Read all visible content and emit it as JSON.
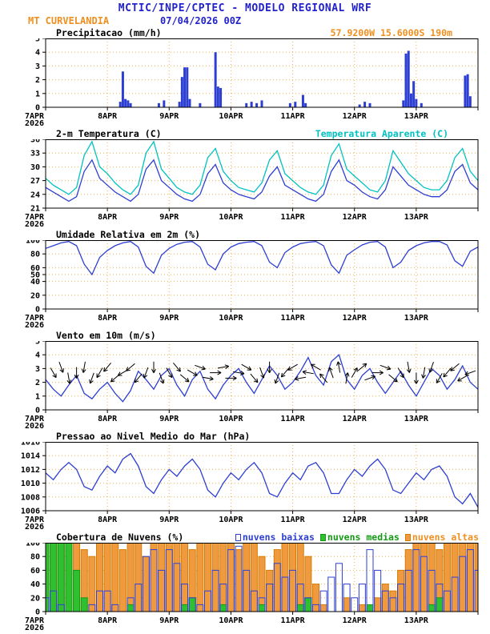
{
  "header": {
    "line1": "MCTIC/INPE/CPTEC - MODELO REGIONAL WRF",
    "station": "MT CURVELANDIA",
    "run": "07/04/2026 00Z",
    "location": "57.9200W 15.6000S 190m"
  },
  "colors": {
    "blue": "#2d3fd3",
    "cyan": "#00c2c2",
    "orange": "#f09a40",
    "orange_text": "#ef8f1f",
    "orange_stroke": "#d67b00",
    "green": "#2fbf2f",
    "green_stroke": "#149914",
    "grid": "#f2b24e",
    "black": "#000000"
  },
  "x_axis": {
    "hours_total": 168,
    "day_labels": [
      "7APR",
      "8APR",
      "9APR",
      "10APR",
      "11APR",
      "12APR",
      "13APR"
    ],
    "year_label": "2026"
  },
  "chart_data": [
    {
      "id": "precip",
      "type": "bar",
      "title": "Precipitacao (mm/h)",
      "ylabel": "mm/h",
      "ylim": [
        0,
        5
      ],
      "yticks": [
        0,
        1,
        2,
        3,
        4,
        5
      ],
      "points": [
        [
          29,
          0.4
        ],
        [
          30,
          2.6
        ],
        [
          31,
          0.6
        ],
        [
          32,
          0.5
        ],
        [
          33,
          0.3
        ],
        [
          44,
          0.3
        ],
        [
          46,
          0.5
        ],
        [
          52,
          0.4
        ],
        [
          53,
          2.2
        ],
        [
          54,
          2.9
        ],
        [
          55,
          2.9
        ],
        [
          56,
          0.6
        ],
        [
          60,
          0.3
        ],
        [
          66,
          4.0
        ],
        [
          67,
          1.5
        ],
        [
          68,
          1.4
        ],
        [
          78,
          0.3
        ],
        [
          80,
          0.4
        ],
        [
          82,
          0.3
        ],
        [
          84,
          0.5
        ],
        [
          95,
          0.3
        ],
        [
          97,
          0.4
        ],
        [
          100,
          0.9
        ],
        [
          101,
          0.3
        ],
        [
          122,
          0.2
        ],
        [
          124,
          0.4
        ],
        [
          126,
          0.3
        ],
        [
          139,
          0.5
        ],
        [
          140,
          3.9
        ],
        [
          141,
          4.1
        ],
        [
          142,
          1.0
        ],
        [
          143,
          1.9
        ],
        [
          144,
          0.6
        ],
        [
          146,
          0.3
        ],
        [
          163,
          2.3
        ],
        [
          164,
          2.4
        ],
        [
          165,
          0.8
        ]
      ]
    },
    {
      "id": "temperature",
      "type": "line",
      "title": "2-m Temperatura (C)",
      "ylim": [
        21,
        36
      ],
      "yticks": [
        21,
        24,
        27,
        30,
        33,
        36
      ],
      "x_step_hours": 3,
      "series": [
        {
          "name": "2-m Temperatura (C)",
          "color": "blue",
          "values": [
            25.5,
            24.5,
            23.5,
            22.5,
            23.5,
            29,
            31.5,
            27.5,
            26,
            24.5,
            23.5,
            22.5,
            24,
            29.5,
            31.5,
            27,
            25.5,
            24,
            23,
            22.5,
            24,
            28.5,
            30.5,
            26.5,
            25,
            24,
            23.5,
            23,
            24.5,
            28,
            30,
            26,
            25,
            24,
            23,
            22.5,
            24,
            29,
            31.5,
            27,
            26,
            24.5,
            23.5,
            23,
            25,
            30,
            28,
            26,
            25,
            24,
            23.5,
            23.5,
            25,
            29,
            30.5,
            26.5,
            25
          ]
        },
        {
          "name": "Temperatura Aparente (C)",
          "color": "cyan",
          "values": [
            27.5,
            26,
            25,
            24,
            25.5,
            32.5,
            35.5,
            30,
            28.5,
            26.5,
            25,
            24,
            26,
            33,
            35.5,
            29.5,
            27.5,
            25.5,
            24.5,
            24,
            26,
            32,
            34,
            29,
            27,
            25.5,
            25,
            24.5,
            26.5,
            31.5,
            33.5,
            28.5,
            27,
            25.5,
            24.5,
            24,
            26,
            32.5,
            35,
            29.5,
            28,
            26.5,
            25,
            24.5,
            27,
            33.5,
            31,
            28.5,
            27,
            25.5,
            25,
            25,
            27,
            32,
            34,
            29,
            27
          ]
        }
      ]
    },
    {
      "id": "humidity",
      "type": "line",
      "title": "Umidade Relativa em 2m (%)",
      "ylim": [
        0,
        100
      ],
      "yticks": [
        0,
        20,
        40,
        50,
        60,
        80,
        100
      ],
      "x_step_hours": 3,
      "series": [
        {
          "name": "Umidade Relativa em 2m (%)",
          "color": "blue",
          "values": [
            88,
            92,
            96,
            98,
            92,
            65,
            50,
            75,
            85,
            92,
            96,
            98,
            90,
            62,
            52,
            78,
            88,
            94,
            97,
            98,
            90,
            65,
            57,
            80,
            90,
            95,
            97,
            98,
            92,
            68,
            60,
            82,
            90,
            95,
            97,
            98,
            92,
            64,
            52,
            78,
            86,
            93,
            97,
            98,
            90,
            60,
            68,
            85,
            92,
            96,
            98,
            98,
            93,
            70,
            62,
            84,
            90
          ]
        }
      ]
    },
    {
      "id": "wind",
      "type": "wind",
      "title": "Vento em 10m (m/s)",
      "ylim": [
        0,
        5
      ],
      "yticks": [
        0,
        1,
        2,
        3,
        4,
        5
      ],
      "x_step_hours": 3,
      "series": [
        {
          "name": "Vento em 10m (m/s)",
          "color": "blue",
          "values": [
            2.2,
            1.5,
            1.0,
            1.8,
            2.5,
            1.2,
            0.8,
            1.5,
            2.0,
            1.2,
            0.6,
            1.4,
            2.8,
            2.2,
            1.5,
            2.5,
            3.0,
            1.8,
            1.0,
            2.2,
            2.8,
            1.5,
            0.8,
            1.8,
            2.5,
            3.0,
            2.0,
            1.2,
            2.2,
            3.2,
            2.5,
            1.5,
            2.0,
            2.8,
            3.8,
            2.5,
            1.8,
            3.5,
            4.0,
            2.2,
            1.5,
            2.5,
            3.0,
            2.0,
            1.2,
            2.0,
            2.8,
            1.8,
            1.0,
            2.0,
            3.0,
            2.5,
            1.5,
            2.2,
            3.2,
            2.0,
            1.5
          ]
        }
      ],
      "arrows": {
        "x_step_hours": 3,
        "directions_deg": [
          140,
          150,
          160,
          170,
          180,
          190,
          200,
          210,
          220,
          230,
          240,
          230,
          220,
          200,
          180,
          160,
          150,
          140,
          130,
          120,
          110,
          100,
          90,
          80,
          90,
          100,
          120,
          140,
          160,
          180,
          200,
          220,
          240,
          260,
          280,
          300,
          320,
          340,
          350,
          10,
          30,
          50,
          70,
          90,
          110,
          130,
          150,
          170,
          180,
          190,
          200,
          210,
          220,
          230,
          240,
          250,
          260
        ]
      }
    },
    {
      "id": "pressure",
      "type": "line",
      "title": "Pressao ao Nivel Medio do Mar (hPa)",
      "ylim": [
        1006,
        1016
      ],
      "yticks": [
        1006,
        1008,
        1010,
        1012,
        1014,
        1016
      ],
      "x_step_hours": 3,
      "series": [
        {
          "name": "Pressao ao Nivel Medio do Mar (hPa)",
          "color": "blue",
          "values": [
            1011.5,
            1010.5,
            1012,
            1013,
            1012,
            1009.5,
            1009,
            1011,
            1012.5,
            1011.5,
            1013.5,
            1014.3,
            1012.5,
            1009.5,
            1008.5,
            1010.5,
            1012,
            1011,
            1012.5,
            1013.5,
            1012,
            1009,
            1008,
            1010,
            1011.5,
            1010.5,
            1012,
            1013,
            1011.5,
            1008.5,
            1008,
            1010,
            1011.5,
            1010.5,
            1012.5,
            1013,
            1011.5,
            1008.5,
            1008.5,
            1010.5,
            1012,
            1011,
            1012.5,
            1013.5,
            1012,
            1009,
            1008.5,
            1010,
            1011.5,
            1010.5,
            1012,
            1012.5,
            1011,
            1008,
            1007,
            1008.5,
            1006.5
          ]
        }
      ]
    },
    {
      "id": "clouds",
      "type": "clouds",
      "title": "Cobertura de Nuvens (%)",
      "ylim": [
        0,
        100
      ],
      "yticks": [
        0,
        20,
        40,
        60,
        80,
        100
      ],
      "x_step_hours": 3,
      "series": [
        {
          "name": "nuvens baixas",
          "style": "outline",
          "color": "blue",
          "values": [
            20,
            30,
            10,
            0,
            0,
            0,
            10,
            30,
            30,
            10,
            0,
            20,
            40,
            80,
            90,
            60,
            90,
            70,
            40,
            20,
            10,
            30,
            60,
            40,
            90,
            95,
            60,
            30,
            20,
            40,
            70,
            50,
            60,
            40,
            20,
            10,
            30,
            50,
            70,
            40,
            20,
            40,
            90,
            60,
            30,
            20,
            40,
            60,
            90,
            80,
            60,
            40,
            30,
            50,
            80,
            90,
            60
          ]
        },
        {
          "name": "nuvens medias",
          "style": "fill",
          "color": "green",
          "stroke": "green_stroke",
          "values": [
            100,
            100,
            100,
            100,
            60,
            20,
            0,
            0,
            0,
            0,
            0,
            10,
            0,
            0,
            0,
            0,
            0,
            0,
            10,
            20,
            0,
            0,
            0,
            10,
            0,
            0,
            0,
            0,
            10,
            0,
            0,
            0,
            0,
            10,
            20,
            0,
            0,
            0,
            0,
            0,
            0,
            0,
            10,
            0,
            0,
            0,
            0,
            0,
            0,
            0,
            10,
            20,
            0,
            0,
            0,
            0,
            0
          ]
        },
        {
          "name": "nuvens altas",
          "style": "fill",
          "color": "orange",
          "stroke": "orange_stroke",
          "values": [
            100,
            100,
            100,
            100,
            100,
            90,
            80,
            100,
            100,
            100,
            90,
            100,
            100,
            80,
            100,
            100,
            100,
            100,
            100,
            90,
            100,
            100,
            100,
            100,
            100,
            90,
            100,
            100,
            80,
            60,
            90,
            100,
            100,
            100,
            80,
            40,
            10,
            0,
            0,
            20,
            0,
            10,
            0,
            20,
            40,
            30,
            60,
            90,
            100,
            100,
            100,
            90,
            100,
            100,
            100,
            100,
            100
          ]
        }
      ]
    }
  ]
}
